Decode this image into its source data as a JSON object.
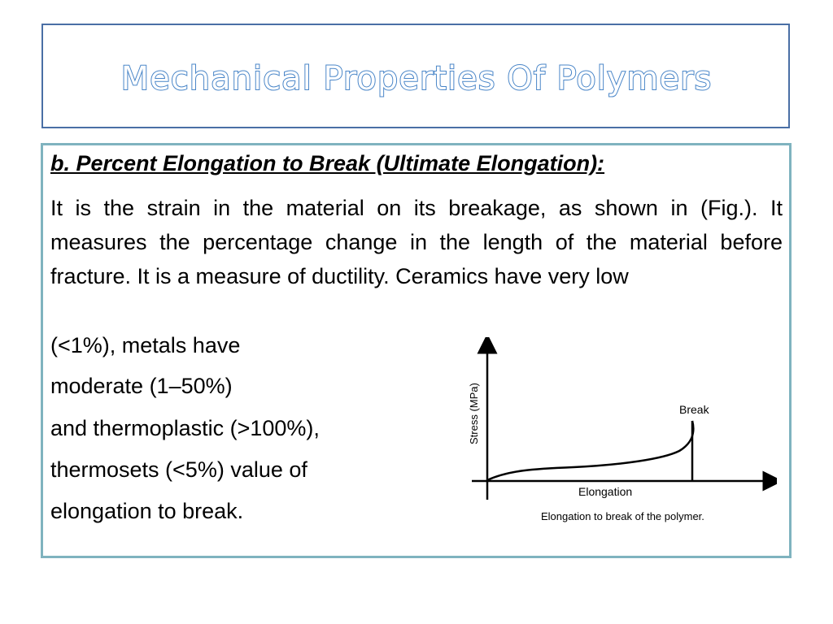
{
  "title": "Mechanical Properties Of Polymers",
  "subtitle": "b. Percent Elongation to Break (Ultimate Elongation):",
  "paragraph": "It is the strain in the material on its breakage, as shown in (Fig.). It measures the percentage change in the length of the material before fracture. It is a measure of ductility. Ceramics have very low",
  "lines": [
    "(<1%), metals have",
    "moderate (1–50%)",
    "and thermoplastic (>100%),",
    "thermosets (<5%) value of",
    "elongation to break."
  ],
  "figure": {
    "ylabel": "Stress (MPa)",
    "xlabel": "Elongation",
    "annotation": "Break",
    "caption": "Elongation to break of the polymer.",
    "colors": {
      "axis": "#000000",
      "curve": "#000000"
    }
  }
}
